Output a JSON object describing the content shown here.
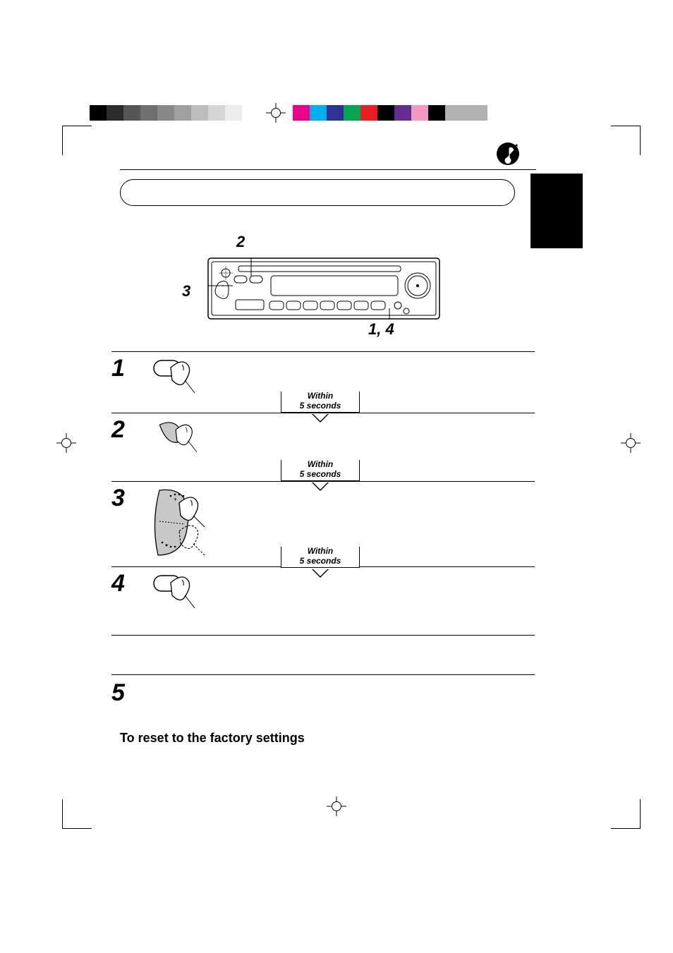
{
  "calibration": {
    "grey_shades": [
      "#000000",
      "#2b2b2b",
      "#555555",
      "#6f6f6f",
      "#888888",
      "#a0a0a0",
      "#bdbdbd",
      "#d6d6d6",
      "#ededed",
      "#ffffff"
    ],
    "colors": [
      "#ec008c",
      "#00aeef",
      "#2e3192",
      "#00a651",
      "#ed1c24",
      "#000000",
      "#662d91",
      "#f49ac1",
      "#000000"
    ]
  },
  "device_labels": {
    "l2": "2",
    "l3": "3",
    "l14": "1, 4"
  },
  "steps": {
    "1": "1",
    "2": "2",
    "3": "3",
    "4": "4",
    "5": "5",
    "within": "Within\n5 seconds"
  },
  "reset_heading": "To reset to the factory settings",
  "styling": {
    "page_bg": "#ffffff",
    "text_color": "#000000",
    "step_num_fontsize": 34,
    "device_label_fontsize": 22,
    "within_fontsize": 12,
    "heading_fontsize": 18,
    "rule_color": "#000000",
    "side_tab_color": "#000000"
  }
}
